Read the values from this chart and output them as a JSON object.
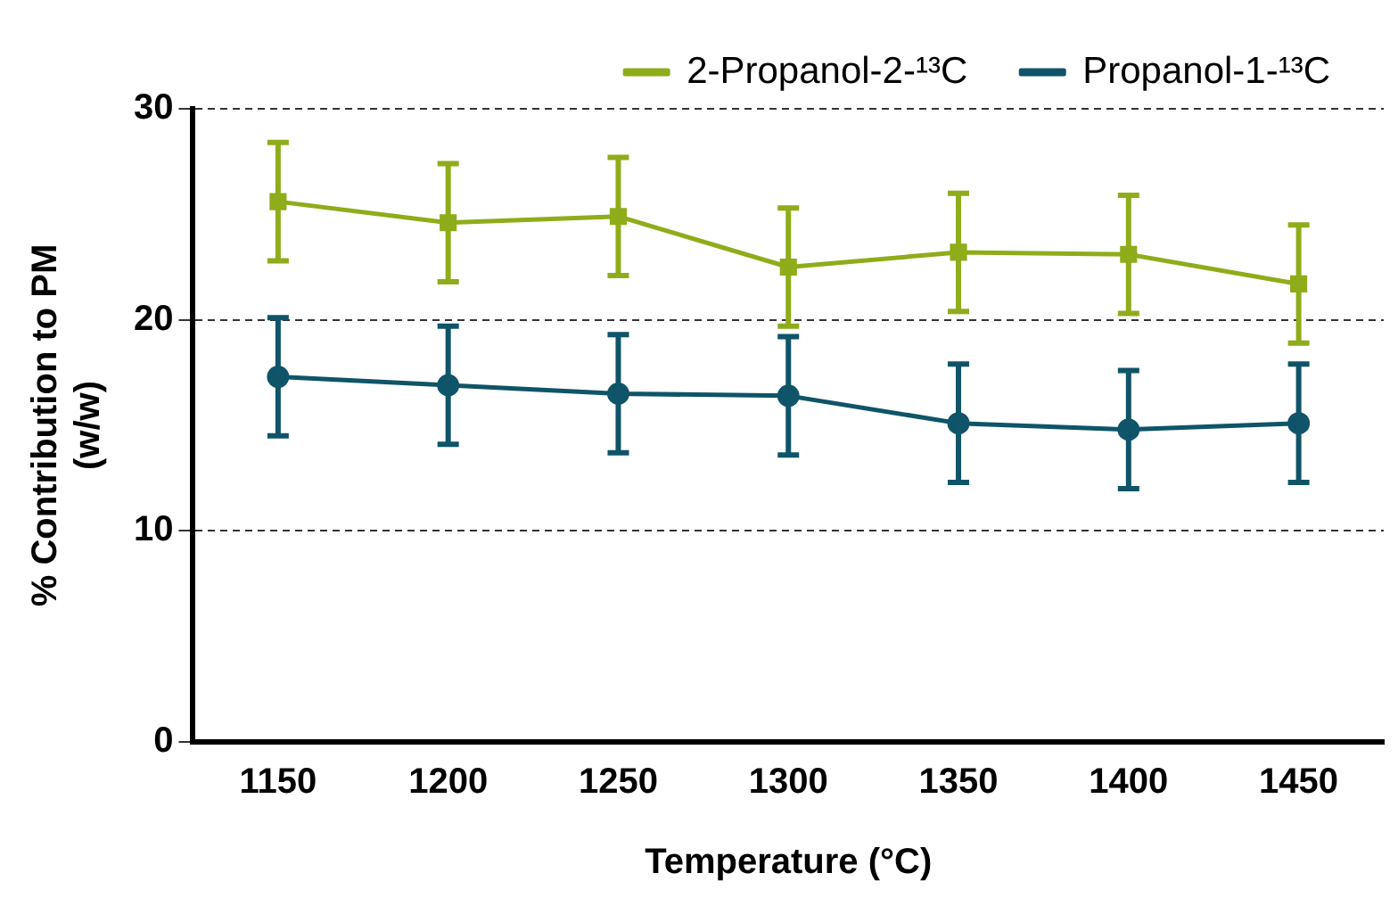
{
  "chart_data": {
    "type": "line",
    "xlabel": "Temperature (°C)",
    "ylabel": "% Contribution to PM\n(w/w)",
    "categories": [
      "1150",
      "1200",
      "1250",
      "1300",
      "1350",
      "1400",
      "1450"
    ],
    "series": [
      {
        "name": "2-Propanol-2-¹³C",
        "color": "#8fac1a",
        "marker": "square",
        "values": [
          25.6,
          24.6,
          24.9,
          22.5,
          23.2,
          23.1,
          21.7
        ],
        "errors": [
          2.8,
          2.8,
          2.8,
          2.8,
          2.8,
          2.8,
          2.8
        ]
      },
      {
        "name": "Propanol-1-¹³C",
        "color": "#0f5468",
        "marker": "circle",
        "values": [
          17.3,
          16.9,
          16.5,
          16.4,
          15.1,
          14.8,
          15.1
        ],
        "errors": [
          2.8,
          2.8,
          2.8,
          2.8,
          2.8,
          2.8,
          2.8
        ]
      }
    ],
    "ylim": [
      0,
      30
    ],
    "yticks": [
      0,
      10,
      20,
      30
    ],
    "grid": "y",
    "legend": "top",
    "line_style": "solid"
  }
}
